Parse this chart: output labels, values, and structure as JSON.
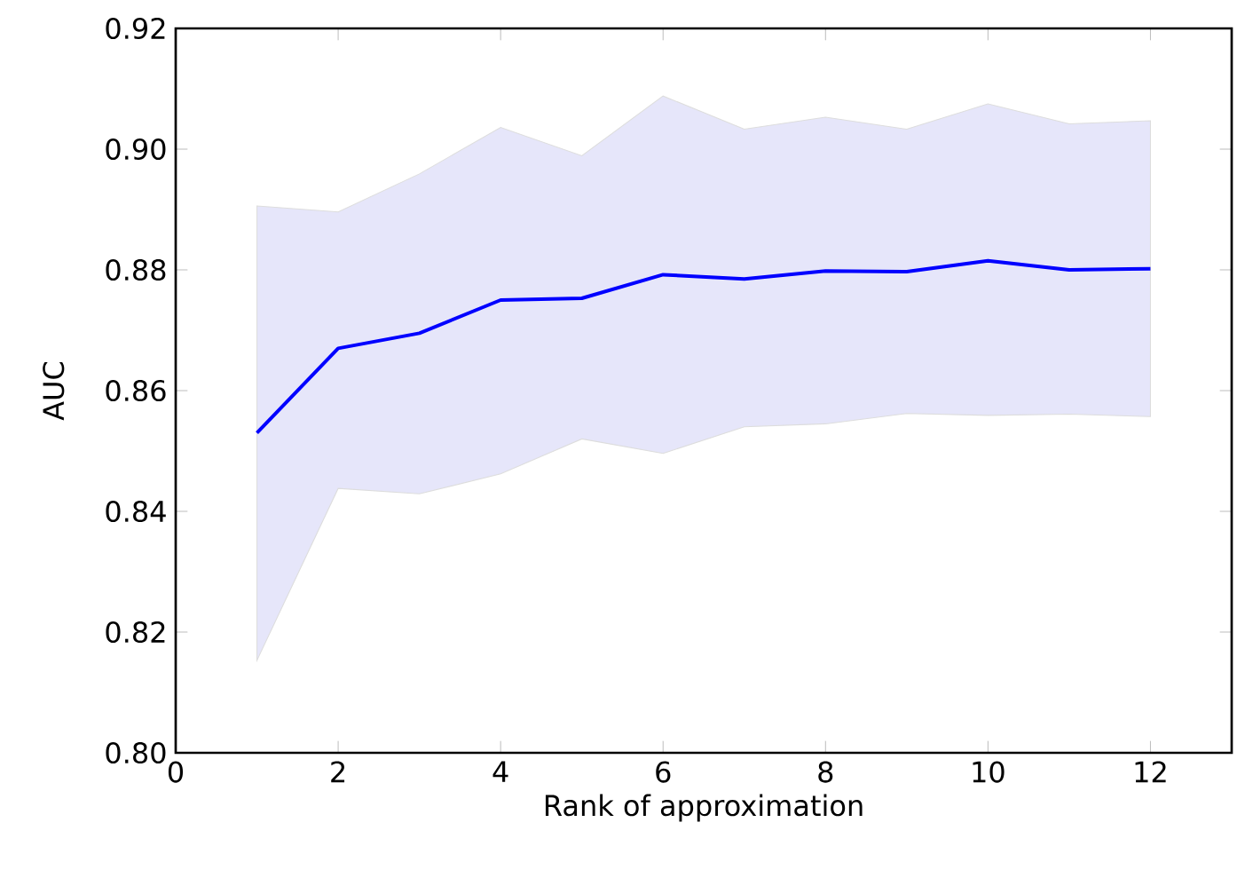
{
  "chart_data": {
    "type": "line",
    "xlabel": "Rank of approximation",
    "ylabel": "AUC",
    "x": [
      1,
      2,
      3,
      4,
      5,
      6,
      7,
      8,
      9,
      10,
      11,
      12
    ],
    "series": [
      {
        "color": "#0000ff",
        "values": [
          0.853,
          0.867,
          0.8695,
          0.875,
          0.8753,
          0.8792,
          0.8785,
          0.8798,
          0.8797,
          0.8815,
          0.88,
          0.8802
        ],
        "lower": [
          0.8153,
          0.8438,
          0.8429,
          0.8462,
          0.852,
          0.8496,
          0.854,
          0.8545,
          0.8562,
          0.8559,
          0.8561,
          0.8557
        ],
        "upper": [
          0.8906,
          0.8896,
          0.8959,
          0.9036,
          0.8989,
          0.9088,
          0.9033,
          0.9053,
          0.9033,
          0.9075,
          0.9042,
          0.9047
        ]
      }
    ],
    "xlim": [
      0,
      13
    ],
    "xticks": [
      0,
      2,
      4,
      6,
      8,
      10,
      12
    ],
    "ylim": [
      0.8,
      0.92
    ],
    "yticks": [
      {
        "value": 0.8,
        "label": "0.80"
      },
      {
        "value": 0.82,
        "label": "0.82"
      },
      {
        "value": 0.84,
        "label": "0.84"
      },
      {
        "value": 0.86,
        "label": "0.86"
      },
      {
        "value": 0.88,
        "label": "0.88"
      },
      {
        "value": 0.9,
        "label": "0.90"
      },
      {
        "value": 0.92,
        "label": "0.92"
      }
    ],
    "grid": false,
    "marker": "none",
    "line_style": "solid"
  }
}
